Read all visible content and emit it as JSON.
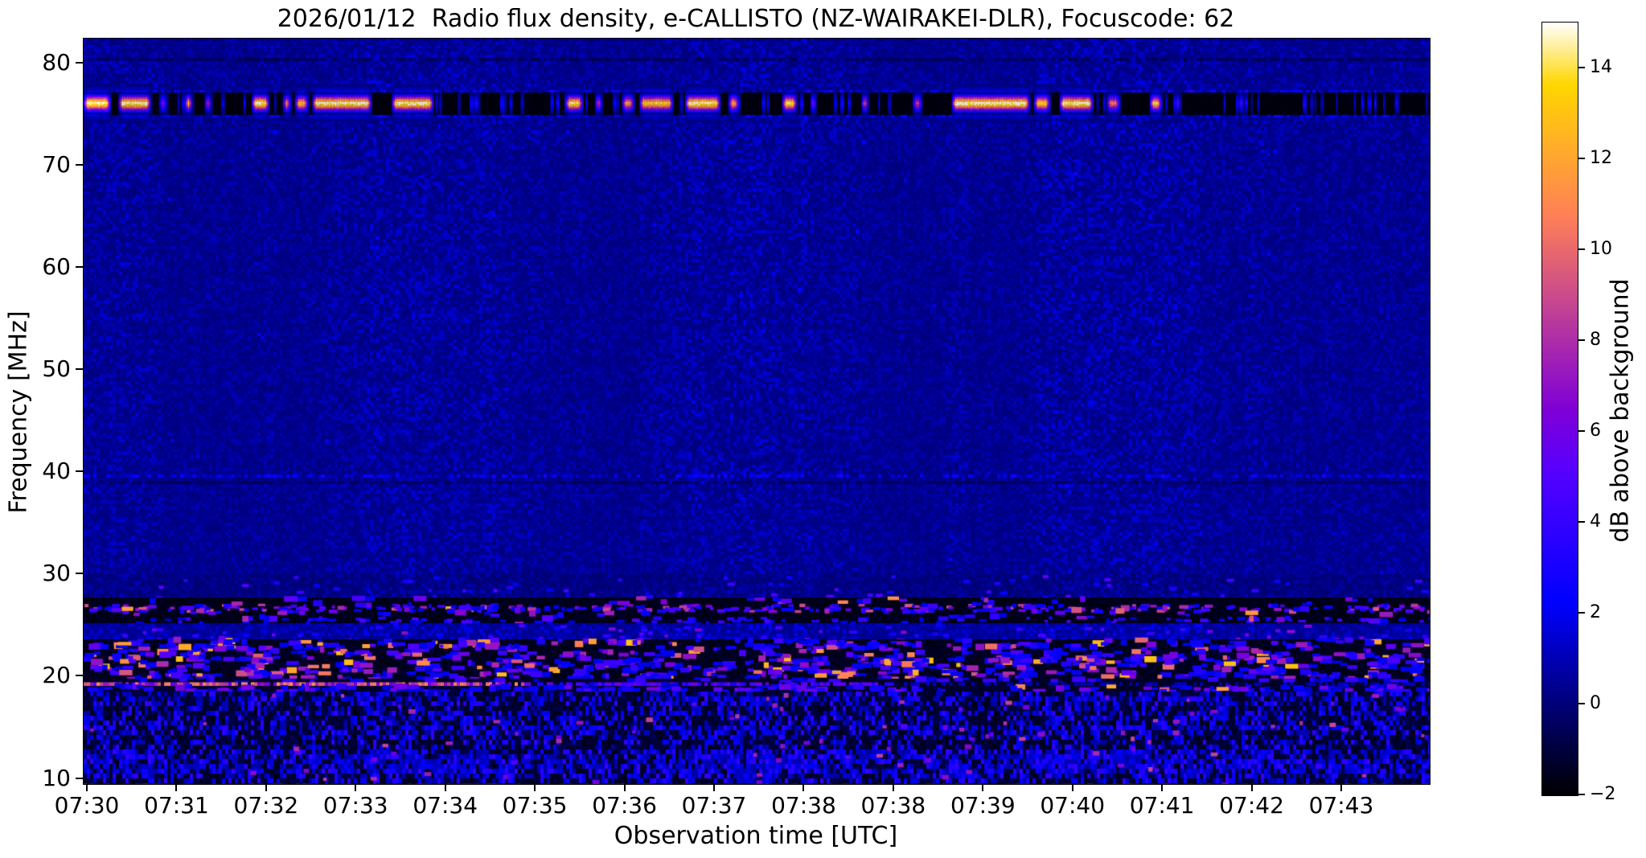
{
  "figure": {
    "title": "2026/01/12  Radio flux density, e-CALLISTO (NZ-WAIRAKEI-DLR), Focuscode: 62",
    "xlabel": "Observation time [UTC]",
    "ylabel": "Frequency [MHz]",
    "colorbar_label": "dB above background"
  },
  "chart_data": {
    "type": "heatmap",
    "subtype": "radio-spectrogram",
    "title": "2026/01/12  Radio flux density, e-CALLISTO (NZ-WAIRAKEI-DLR), Focuscode: 62",
    "xlabel": "Observation time [UTC]",
    "ylabel": "Frequency [MHz]",
    "x_tick_labels": [
      "07:30",
      "07:31",
      "07:32",
      "07:33",
      "07:34",
      "07:35",
      "07:36",
      "07:37",
      "07:38",
      "07:38",
      "07:39",
      "07:40",
      "07:41",
      "07:42",
      "07:43"
    ],
    "y_ticks": [
      80,
      70,
      60,
      50,
      40,
      30,
      20,
      10
    ],
    "freq_range_mhz": [
      9.5,
      82.4
    ],
    "grid": false,
    "colorbar": {
      "label": "dB above background",
      "ticks": [
        14,
        12,
        10,
        8,
        6,
        4,
        2,
        0,
        -2
      ],
      "vmin": -2,
      "vmax": 15,
      "colormap": "gnuplot2",
      "position": "right"
    },
    "features": {
      "background_db": 0.1,
      "seed": 42,
      "bands": [
        {
          "name": "top-noise",
          "type": "noise",
          "f": [
            82.4,
            77.15
          ],
          "base": 0.1,
          "var": 1.3,
          "dark_rows": [
            [
              80.5,
              80.1
            ]
          ],
          "bright_rows": [
            [
              77.5,
              77.15
            ]
          ]
        },
        {
          "name": "mid-noise",
          "type": "noise",
          "f": [
            75.0,
            30.0
          ],
          "base": 0.1,
          "var": 1.3,
          "dark_rows": [
            [
              39.1,
              38.7
            ]
          ],
          "bright_rows": [
            [
              75.0,
              74.65
            ],
            [
              39.7,
              39.4
            ]
          ]
        },
        {
          "name": "rfi-band-76mhz",
          "type": "rfi",
          "f": [
            77.15,
            75.0
          ],
          "halo_mhz": 0.8,
          "faint_streaks": 85,
          "bursts": [
            [
              0.0,
              0.02,
              1.0
            ],
            [
              0.026,
              0.024,
              1.0
            ],
            [
              0.056,
              0.006,
              0.45
            ],
            [
              0.075,
              0.006,
              0.9
            ],
            [
              0.09,
              0.005,
              0.7
            ],
            [
              0.125,
              0.013,
              1.0
            ],
            [
              0.148,
              0.006,
              0.8
            ],
            [
              0.157,
              0.01,
              0.85
            ],
            [
              0.17,
              0.044,
              1.0
            ],
            [
              0.229,
              0.031,
              1.0
            ],
            [
              0.29,
              0.004,
              0.4
            ],
            [
              0.358,
              0.013,
              0.95
            ],
            [
              0.38,
              0.005,
              0.75
            ],
            [
              0.4,
              0.009,
              0.8
            ],
            [
              0.413,
              0.025,
              0.9
            ],
            [
              0.447,
              0.026,
              1.0
            ],
            [
              0.479,
              0.008,
              0.8
            ],
            [
              0.519,
              0.011,
              0.95
            ],
            [
              0.54,
              0.004,
              0.6
            ],
            [
              0.578,
              0.005,
              0.85
            ],
            [
              0.616,
              0.007,
              0.6
            ],
            [
              0.645,
              0.058,
              1.0
            ],
            [
              0.706,
              0.012,
              0.9
            ],
            [
              0.725,
              0.025,
              1.0
            ],
            [
              0.76,
              0.01,
              0.7
            ],
            [
              0.792,
              0.009,
              0.9
            ],
            [
              0.811,
              0.004,
              0.6
            ],
            [
              0.858,
              0.004,
              0.5
            ],
            [
              0.974,
              0.003,
              0.5
            ]
          ]
        },
        {
          "name": "upper-hf-noise",
          "type": "noise",
          "f": [
            30.0,
            27.7
          ],
          "base": -0.1,
          "var": 1.1,
          "dots": {
            "count": 70,
            "v": [
              2,
              5.5
            ]
          }
        },
        {
          "name": "black-band-27mhz",
          "type": "speckle",
          "f": [
            27.7,
            25.2
          ],
          "floor": -1.8,
          "blobs": {
            "count": 90,
            "v": [
              2,
              8
            ],
            "hot_frac": 0.06
          },
          "rows": [
            {
              "f": [
                27.15,
                26.5
              ],
              "count": 300,
              "v": [
                2,
                9.5
              ]
            },
            {
              "f": [
                25.9,
                25.4
              ],
              "count": 110,
              "v": [
                1.5,
                5
              ]
            }
          ]
        },
        {
          "name": "blue-row-24mhz",
          "type": "noise",
          "f": [
            25.2,
            23.6
          ],
          "base": 0.3,
          "var": 1.6,
          "dots": {
            "count": 90,
            "v": [
              2.5,
              7
            ]
          }
        },
        {
          "name": "speckle-band-20-24mhz",
          "type": "speckle",
          "f": [
            23.6,
            19.75
          ],
          "floor": -1.7,
          "blobs": {
            "count": 640,
            "v": [
              2,
              13
            ],
            "hot_frac": 0.18
          },
          "rows": []
        },
        {
          "name": "dark-gap",
          "type": "speckle",
          "f": [
            19.75,
            19.45
          ],
          "floor": -1.6,
          "blobs": {
            "count": 40,
            "v": [
              1.5,
              4
            ],
            "hot_frac": 0.0
          },
          "rows": []
        },
        {
          "name": "pink-line-19mhz",
          "type": "line",
          "f": [
            19.45,
            19.05
          ],
          "v_max": 10.5,
          "segments": [
            [
              0.0,
              0.33,
              1.0
            ],
            [
              0.33,
              0.6,
              0.55
            ],
            [
              0.6,
              1.0,
              0.12
            ]
          ]
        },
        {
          "name": "below-line",
          "type": "speckle",
          "f": [
            19.05,
            18.5
          ],
          "floor": -1.5,
          "blobs": {
            "count": 130,
            "v": [
              1.5,
              6
            ],
            "hot_frac": 0.05
          },
          "rows": []
        },
        {
          "name": "low-hf-mottle",
          "type": "mottle",
          "f": [
            18.5,
            9.5
          ],
          "profile": [
            [
              18.5,
              0.34
            ],
            [
              17.8,
              0.45
            ],
            [
              17.1,
              0.22
            ],
            [
              16.4,
              0.4
            ],
            [
              15.7,
              0.28
            ],
            [
              14.9,
              0.47
            ],
            [
              14.1,
              0.33
            ],
            [
              13.4,
              0.28
            ],
            [
              12.7,
              0.45
            ],
            [
              11.9,
              0.52
            ],
            [
              11.1,
              0.58
            ],
            [
              10.3,
              0.5
            ],
            [
              9.5,
              0.3
            ]
          ],
          "bright_dots": {
            "count": 90,
            "v": [
              5,
              9
            ]
          }
        }
      ]
    }
  }
}
